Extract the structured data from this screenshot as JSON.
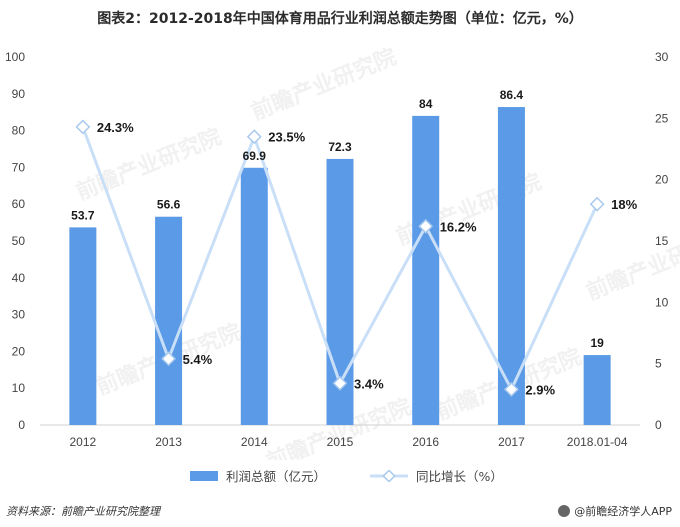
{
  "title": "图表2：2012-2018年中国体育用品行业利润总额走势图（单位：亿元，%）",
  "legend": {
    "bar_label": "利润总额（亿元）",
    "line_label": "同比增长（%）"
  },
  "footer": {
    "source": "资料来源：前瞻产业研究院整理",
    "brand": "@前瞻经济学人APP"
  },
  "watermark_text": "前瞻产业研究院",
  "colors": {
    "bar": "#5a9ae6",
    "line": "#c9dff7",
    "marker": "#a9c9ee",
    "axis_text": "#444444",
    "label_text": "#1a1a1a"
  },
  "chart_data": {
    "type": "bar",
    "categories": [
      "2012",
      "2013",
      "2014",
      "2015",
      "2016",
      "2017",
      "2018.01-04"
    ],
    "series": [
      {
        "name": "利润总额（亿元）",
        "type": "bar",
        "axis": "left",
        "values": [
          53.7,
          56.6,
          69.9,
          72.3,
          84,
          86.4,
          19
        ],
        "labels": [
          "53.7",
          "56.6",
          "69.9",
          "72.3",
          "84",
          "86.4",
          "19"
        ]
      },
      {
        "name": "同比增长（%）",
        "type": "line",
        "axis": "right",
        "values": [
          24.3,
          5.4,
          23.5,
          3.4,
          16.2,
          2.9,
          18
        ],
        "labels": [
          "24.3%",
          "5.4%",
          "23.5%",
          "3.4%",
          "16.2%",
          "2.9%",
          "18%"
        ]
      }
    ],
    "y_left": {
      "min": 0,
      "max": 100,
      "ticks": [
        "0",
        "10",
        "20",
        "30",
        "40",
        "50",
        "60",
        "70",
        "80",
        "90",
        "100"
      ]
    },
    "y_right": {
      "min": 0,
      "max": 30,
      "ticks": [
        "0",
        "5",
        "10",
        "15",
        "20",
        "25",
        "30"
      ]
    },
    "grid": false,
    "legend_position": "bottom"
  }
}
